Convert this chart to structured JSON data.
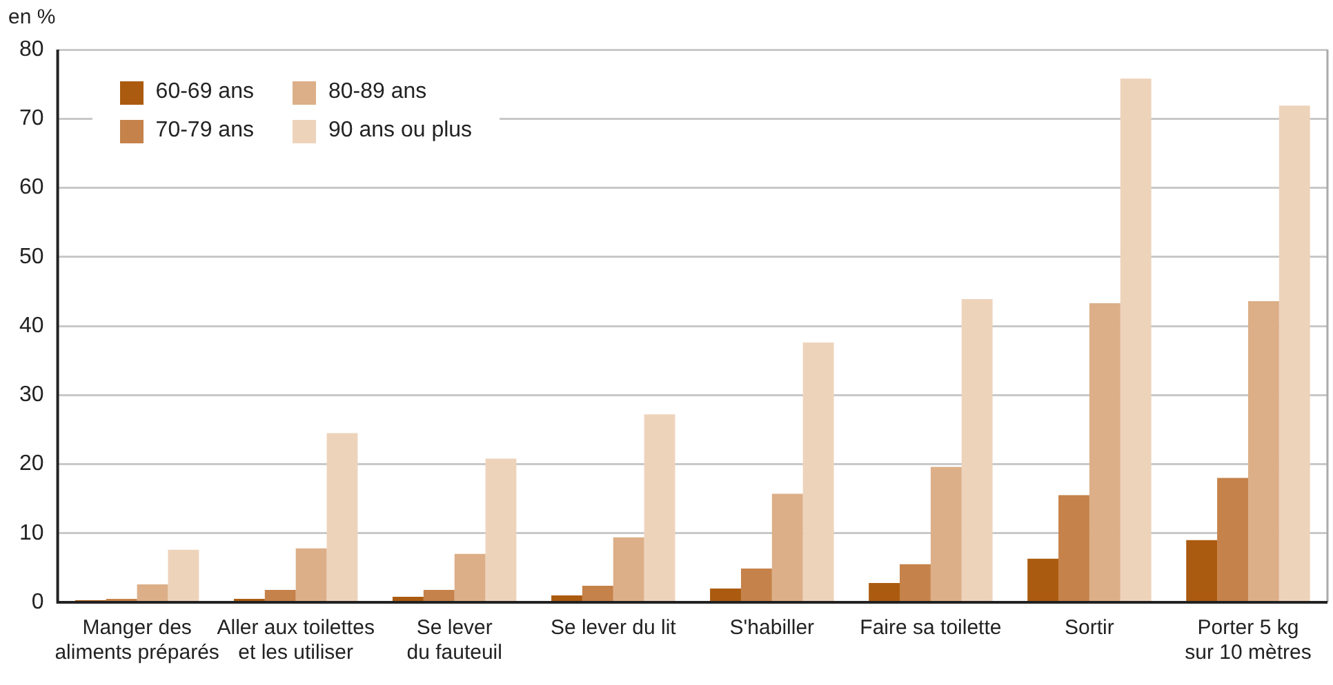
{
  "chart_data": {
    "type": "bar",
    "ylabel": "en %",
    "categories": [
      "Manger des\naliments préparés",
      "Aller aux toilettes\net les utiliser",
      "Se lever\ndu fauteuil",
      "Se lever du lit",
      "S'habiller",
      "Faire sa toilette",
      "Sortir",
      "Porter 5 kg\nsur 10 mètres"
    ],
    "series": [
      {
        "name": "60-69 ans",
        "color": "#ab5b0f",
        "values": [
          0.3,
          0.5,
          0.8,
          1.0,
          2.0,
          2.8,
          6.3,
          9.0
        ]
      },
      {
        "name": "70-79 ans",
        "color": "#c5824a",
        "values": [
          0.5,
          1.8,
          1.8,
          2.4,
          4.9,
          5.5,
          15.5,
          18.0
        ]
      },
      {
        "name": "80-89 ans",
        "color": "#dcaf88",
        "values": [
          2.6,
          7.8,
          7.0,
          9.4,
          15.7,
          19.6,
          43.3,
          43.6
        ]
      },
      {
        "name": "90 ans ou plus",
        "color": "#eed3bb",
        "values": [
          7.6,
          24.5,
          20.8,
          27.2,
          37.6,
          43.9,
          75.8,
          71.9
        ]
      }
    ],
    "ylim": [
      0,
      80
    ],
    "yticks": [
      0,
      10,
      20,
      30,
      40,
      50,
      60,
      70,
      80
    ],
    "grid": "y",
    "legend": "top left"
  }
}
